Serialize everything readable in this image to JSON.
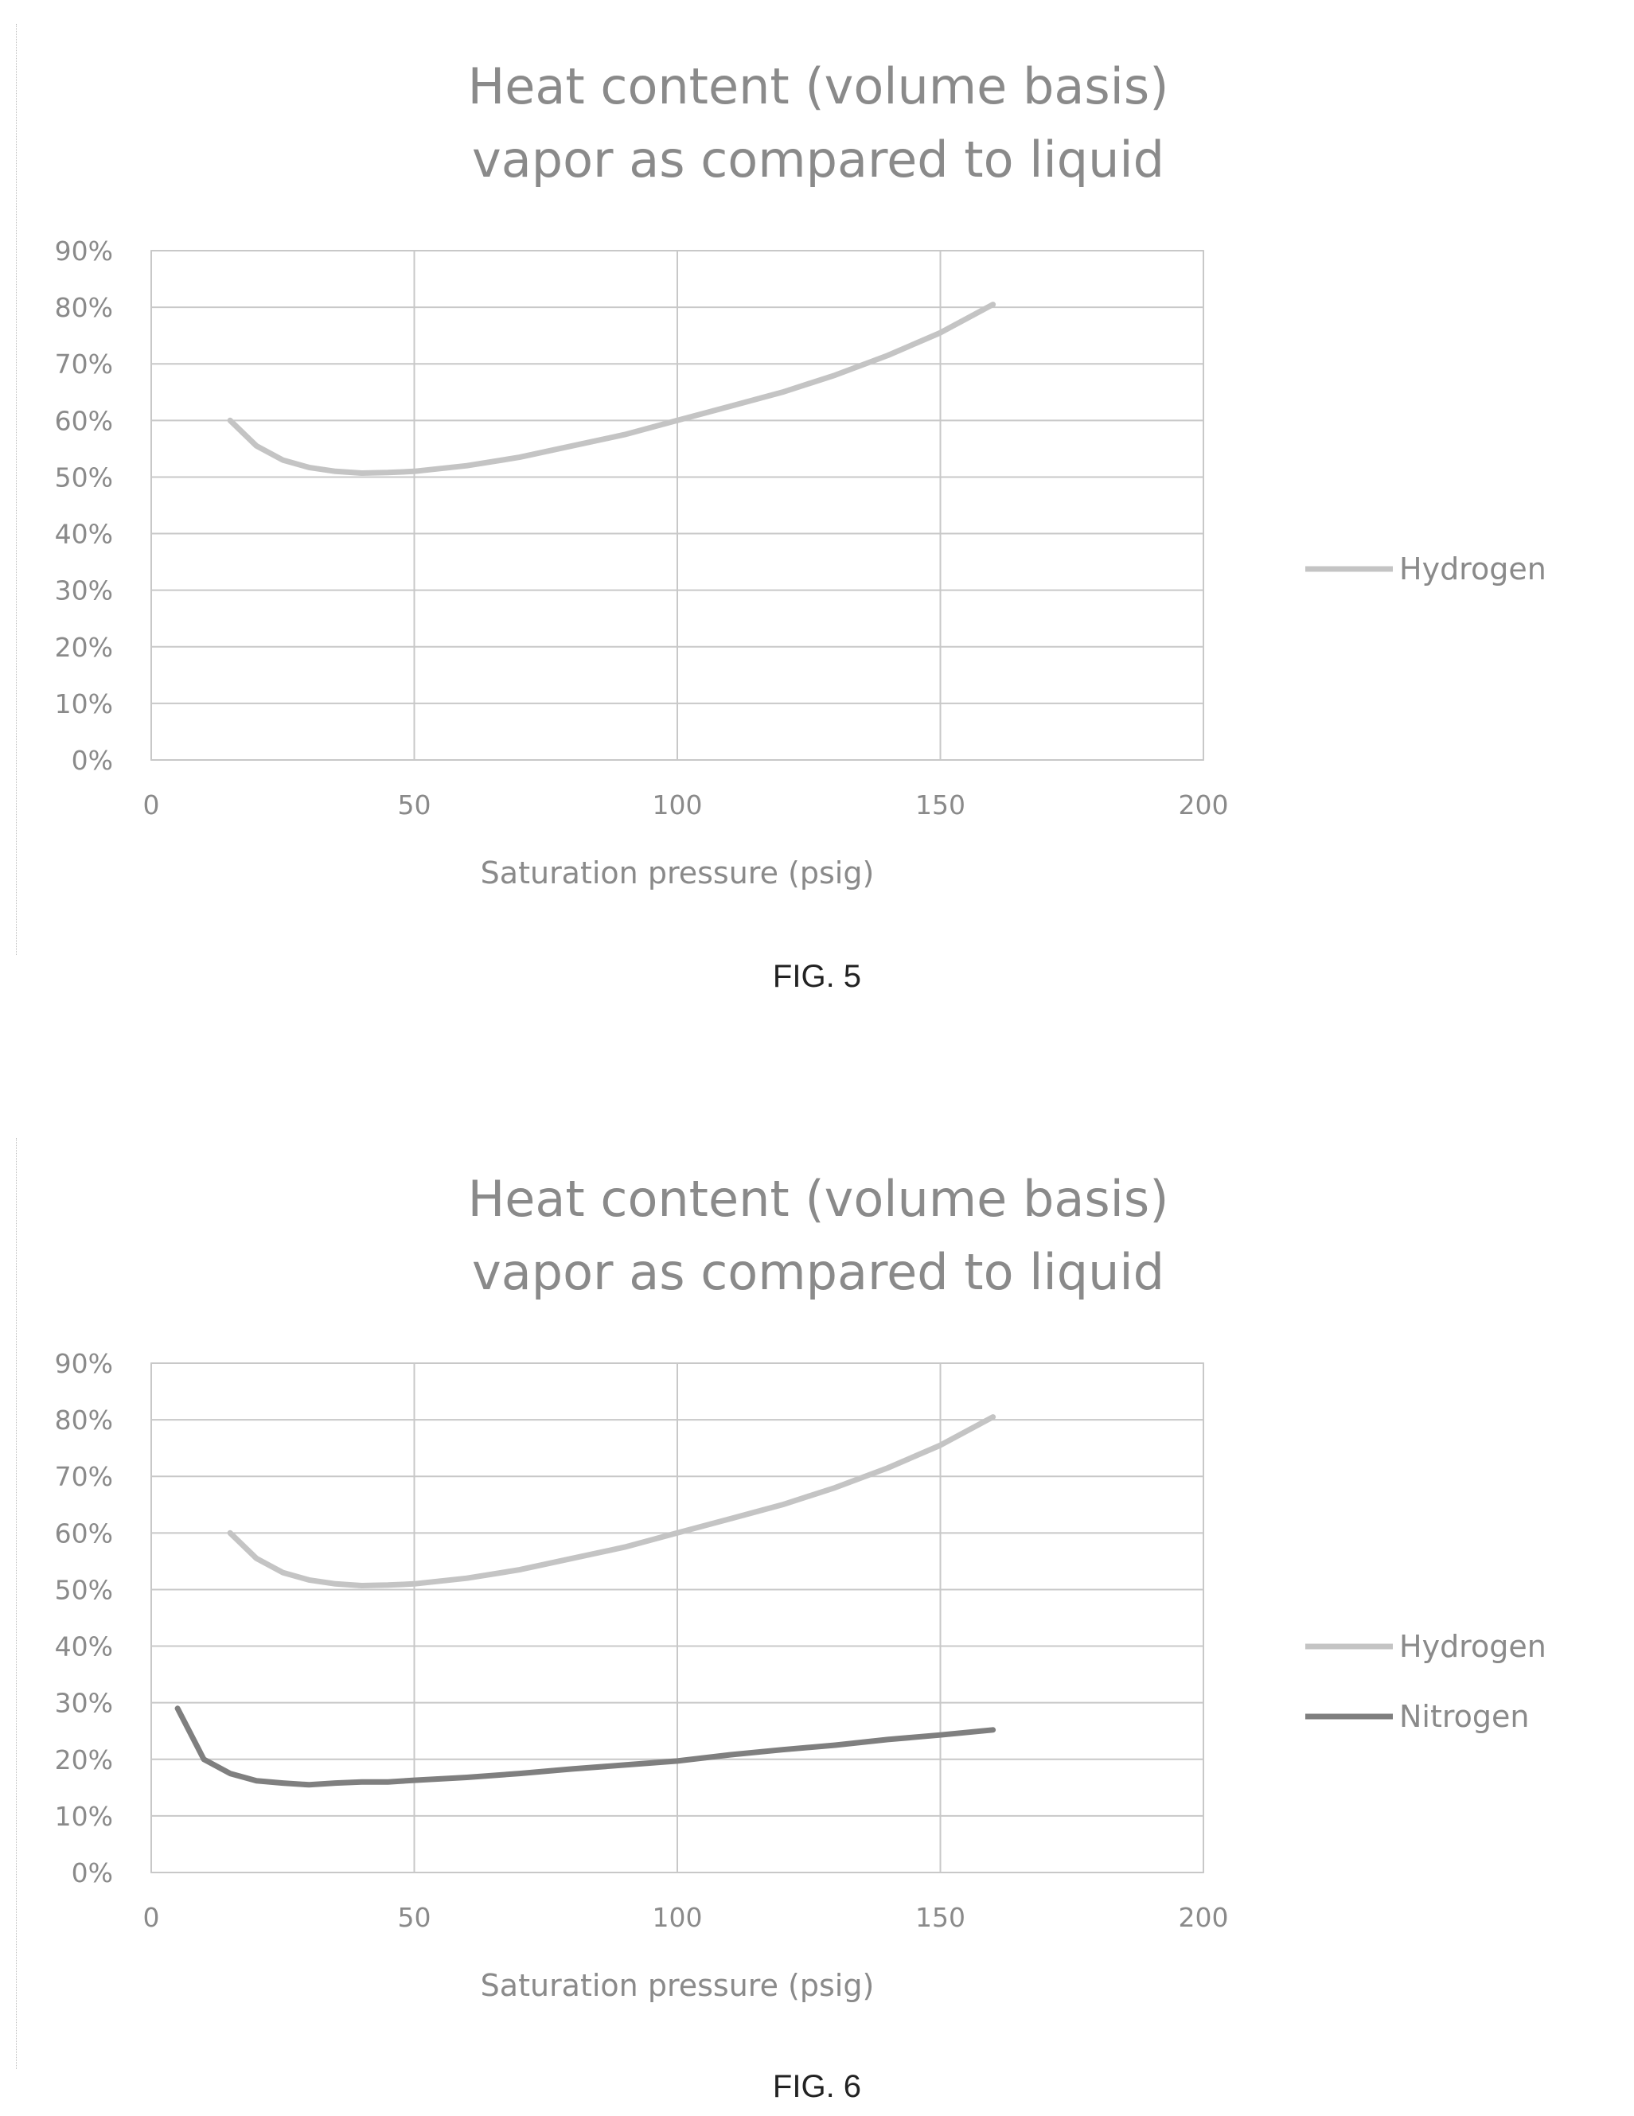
{
  "figures": [
    {
      "caption": "FIG. 5",
      "title_lines": [
        "Heat content (volume basis)",
        "vapor as compared to liquid"
      ],
      "xlabel": "Saturation pressure (psig)"
    },
    {
      "caption": "FIG. 6",
      "title_lines": [
        "Heat content (volume basis)",
        "vapor as compared to liquid"
      ],
      "xlabel": "Saturation pressure (psig)"
    }
  ],
  "colors": {
    "hydrogen": "#c4c4c4",
    "nitrogen": "#7f7f7f",
    "text": "#8a8a8a",
    "grid": "#c8c8c8"
  },
  "chart_data": [
    {
      "type": "line",
      "title": "Heat content (volume basis) vapor as compared to liquid",
      "xlabel": "Saturation pressure (psig)",
      "ylabel": "",
      "xlim": [
        0,
        200
      ],
      "ylim": [
        0,
        0.9
      ],
      "x_ticks": [
        "0",
        "50",
        "100",
        "150",
        "200"
      ],
      "y_ticks": [
        "0%",
        "10%",
        "20%",
        "30%",
        "40%",
        "50%",
        "60%",
        "70%",
        "80%",
        "90%"
      ],
      "grid": true,
      "legend_position": "right",
      "series": [
        {
          "name": "Hydrogen",
          "x": [
            15,
            20,
            25,
            30,
            35,
            40,
            45,
            50,
            60,
            70,
            80,
            90,
            100,
            110,
            120,
            130,
            140,
            150,
            160
          ],
          "y": [
            0.6,
            0.555,
            0.53,
            0.517,
            0.51,
            0.507,
            0.508,
            0.51,
            0.52,
            0.535,
            0.555,
            0.575,
            0.6,
            0.625,
            0.65,
            0.68,
            0.715,
            0.755,
            0.805
          ]
        }
      ]
    },
    {
      "type": "line",
      "title": "Heat content (volume basis) vapor as compared to liquid",
      "xlabel": "Saturation pressure (psig)",
      "ylabel": "",
      "xlim": [
        0,
        200
      ],
      "ylim": [
        0,
        0.9
      ],
      "x_ticks": [
        "0",
        "50",
        "100",
        "150",
        "200"
      ],
      "y_ticks": [
        "0%",
        "10%",
        "20%",
        "30%",
        "40%",
        "50%",
        "60%",
        "70%",
        "80%",
        "90%"
      ],
      "grid": true,
      "legend_position": "right",
      "series": [
        {
          "name": "Hydrogen",
          "x": [
            15,
            20,
            25,
            30,
            35,
            40,
            45,
            50,
            60,
            70,
            80,
            90,
            100,
            110,
            120,
            130,
            140,
            150,
            160
          ],
          "y": [
            0.6,
            0.555,
            0.53,
            0.517,
            0.51,
            0.507,
            0.508,
            0.51,
            0.52,
            0.535,
            0.555,
            0.575,
            0.6,
            0.625,
            0.65,
            0.68,
            0.715,
            0.755,
            0.805
          ]
        },
        {
          "name": "Nitrogen",
          "x": [
            5,
            10,
            15,
            20,
            25,
            30,
            35,
            40,
            45,
            50,
            60,
            70,
            80,
            90,
            100,
            110,
            120,
            130,
            140,
            150,
            160
          ],
          "y": [
            0.29,
            0.2,
            0.175,
            0.162,
            0.158,
            0.155,
            0.158,
            0.16,
            0.16,
            0.163,
            0.168,
            0.175,
            0.183,
            0.19,
            0.197,
            0.208,
            0.217,
            0.225,
            0.235,
            0.243,
            0.252
          ]
        }
      ]
    }
  ]
}
